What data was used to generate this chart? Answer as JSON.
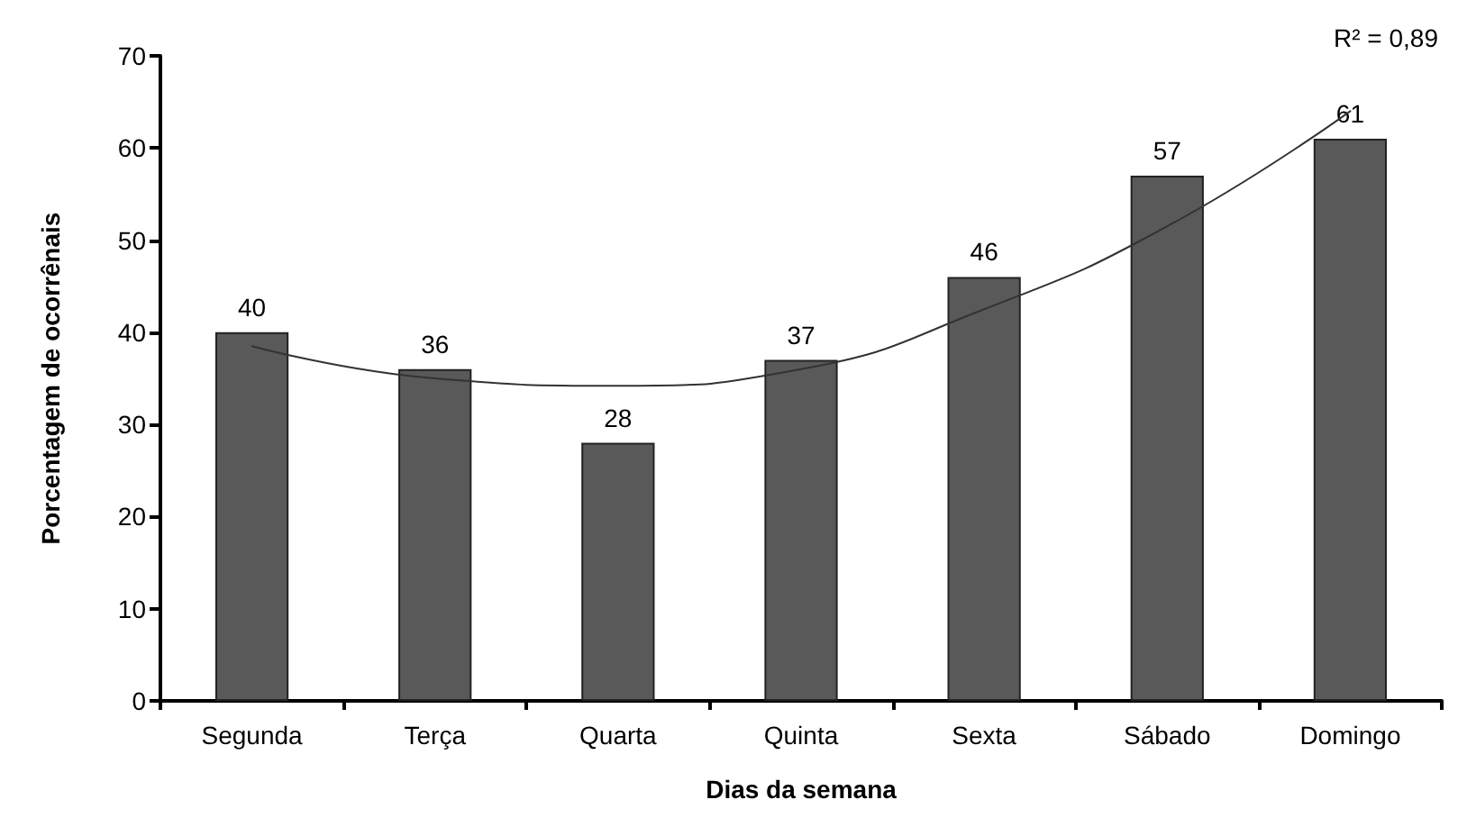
{
  "chart_data": {
    "type": "bar",
    "xlabel": "Dias da semana",
    "ylabel": "Porcentagem de ocorrênais",
    "categories": [
      "Segunda",
      "Terça",
      "Quarta",
      "Quinta",
      "Sexta",
      "Sábado",
      "Domingo"
    ],
    "series": [
      {
        "color": "#595959",
        "values": [
          40,
          36,
          28,
          37,
          46,
          57,
          61
        ],
        "value_labels": [
          "40",
          "36",
          "28",
          "37",
          "46",
          "57",
          "61"
        ]
      },
      {
        "type": "line",
        "color": "#333333",
        "x": [
          "Segunda",
          "Terça",
          "Quarta",
          "Quinta",
          "Sexta",
          "Sábado",
          "Domingo"
        ],
        "values": [
          38.5,
          35,
          34.2,
          36,
          42.5,
          51.5,
          64
        ]
      }
    ],
    "ylim": [
      0,
      70
    ],
    "yticks": [
      0,
      10,
      20,
      30,
      40,
      50,
      60,
      70
    ],
    "marker": "none",
    "line_style": "solid",
    "annotations": [
      "R² = 0,89"
    ]
  }
}
